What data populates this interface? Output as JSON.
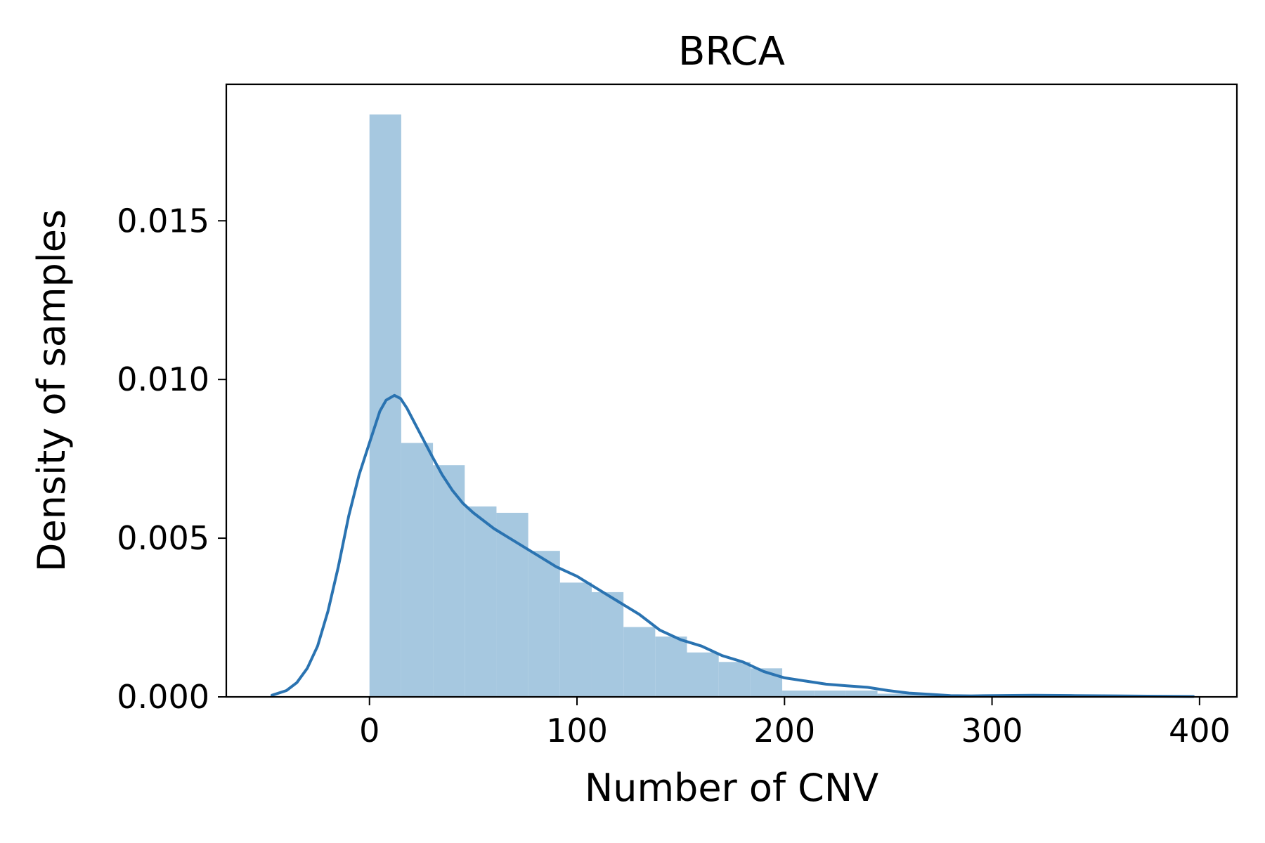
{
  "chart_data": {
    "type": "bar",
    "title": "BRCA",
    "xlabel": "Number of CNV",
    "ylabel": "Density of samples",
    "xlim": [
      -69,
      418
    ],
    "ylim": [
      0,
      0.0193
    ],
    "x_ticks": [
      0,
      100,
      200,
      300,
      400
    ],
    "x_tick_labels": [
      "0",
      "100",
      "200",
      "300",
      "400"
    ],
    "y_ticks": [
      0,
      0.005,
      0.01,
      0.015
    ],
    "y_tick_labels": [
      "0.000",
      "0.005",
      "0.010",
      "0.015"
    ],
    "grid": false,
    "legend": "none",
    "colors": {
      "histogram_fill": "#a6c8e0",
      "density_line": "#2a73b1",
      "axes": "#000000"
    },
    "histogram": {
      "bin_edges": [
        0,
        15.3,
        30.6,
        45.9,
        61.2,
        76.5,
        91.8,
        107.1,
        122.4,
        137.7,
        153.0,
        168.3,
        183.6,
        198.9,
        214.2,
        229.5,
        244.8,
        260.1,
        275.4,
        290.7,
        306.0,
        321.3,
        336.6,
        351.9,
        367.2,
        382.5,
        397.8
      ],
      "values": [
        0.01835,
        0.008,
        0.0073,
        0.006,
        0.0058,
        0.0046,
        0.0036,
        0.0033,
        0.0022,
        0.0019,
        0.0014,
        0.0011,
        0.0009,
        0.0002,
        0.0002,
        0.0002,
        0.0001,
        0.0001,
        5e-05,
        4e-05,
        8e-05,
        4e-05,
        3e-05,
        2e-05,
        2e-05,
        1e-05
      ]
    },
    "density": {
      "x": [
        -47,
        -40,
        -35,
        -30,
        -25,
        -20,
        -15,
        -10,
        -5,
        0,
        5,
        8,
        12,
        15,
        18,
        22,
        26,
        30,
        35,
        40,
        45,
        50,
        60,
        70,
        80,
        90,
        100,
        110,
        120,
        130,
        140,
        150,
        160,
        170,
        180,
        190,
        200,
        210,
        220,
        230,
        240,
        250,
        260,
        270,
        280,
        290,
        300,
        320,
        340,
        360,
        380,
        397
      ],
      "y": [
        5e-05,
        0.0002,
        0.00045,
        0.0009,
        0.0016,
        0.0027,
        0.0041,
        0.0057,
        0.007,
        0.008,
        0.009,
        0.00935,
        0.0095,
        0.0094,
        0.0091,
        0.0086,
        0.0081,
        0.0076,
        0.007,
        0.0065,
        0.0061,
        0.0058,
        0.0053,
        0.0049,
        0.0045,
        0.0041,
        0.0038,
        0.0034,
        0.003,
        0.0026,
        0.0021,
        0.0018,
        0.0016,
        0.0013,
        0.0011,
        0.0008,
        0.0006,
        0.0005,
        0.0004,
        0.00035,
        0.0003,
        0.0002,
        0.00012,
        8e-05,
        4e-05,
        3e-05,
        4e-05,
        5e-05,
        4e-05,
        3e-05,
        2e-05,
        1e-05
      ]
    }
  }
}
